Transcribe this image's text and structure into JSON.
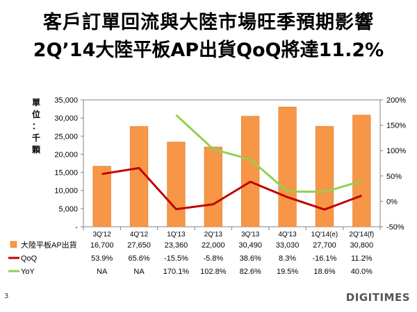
{
  "title_line1": "客戶訂單回流與大陸市場旺季預期影響",
  "title_line2": "2Q’14大陸平板AP出貨QoQ將達11.2%",
  "page_number": "3",
  "logo": "DIGITIMES",
  "colors": {
    "bar": "#F79646",
    "qoq": "#C00000",
    "yoy": "#92D050"
  },
  "chart_data": {
    "type": "bar",
    "categories": [
      "3Q'12",
      "4Q'12",
      "1Q'13",
      "2Q'13",
      "3Q'13",
      "4Q'13",
      "1Q'14(e)",
      "2Q'14(f)"
    ],
    "ylabel": "單位：千顆",
    "ylim": [
      0,
      35000
    ],
    "y_ticks": [
      "-",
      "5,000",
      "10,000",
      "15,000",
      "20,000",
      "25,000",
      "30,000",
      "35,000"
    ],
    "y2lim": [
      -50,
      200
    ],
    "y2_ticks": [
      "-50%",
      "0%",
      "50%",
      "100%",
      "150%",
      "200%"
    ],
    "series": [
      {
        "name": "大陸平板AP出貨",
        "type": "bar",
        "values": [
          16700,
          27650,
          23360,
          22000,
          30490,
          33030,
          27700,
          30800
        ],
        "labels": [
          "16,700",
          "27,650",
          "23,360",
          "22,000",
          "30,490",
          "33,030",
          "27,700",
          "30,800"
        ]
      },
      {
        "name": "QoQ",
        "type": "line",
        "axis": "secondary",
        "values": [
          53.9,
          65.6,
          -15.5,
          -5.8,
          38.6,
          8.3,
          -16.1,
          11.2
        ],
        "labels": [
          "53.9%",
          "65.6%",
          "-15.5%",
          "-5.8%",
          "38.6%",
          "8.3%",
          "-16.1%",
          "11.2%"
        ]
      },
      {
        "name": "YoY",
        "type": "line",
        "axis": "secondary",
        "values": [
          null,
          null,
          170.1,
          102.8,
          82.6,
          19.5,
          18.6,
          40.0
        ],
        "labels": [
          "NA",
          "NA",
          "170.1%",
          "102.8%",
          "82.6%",
          "19.5%",
          "18.6%",
          "40.0%"
        ]
      }
    ]
  }
}
